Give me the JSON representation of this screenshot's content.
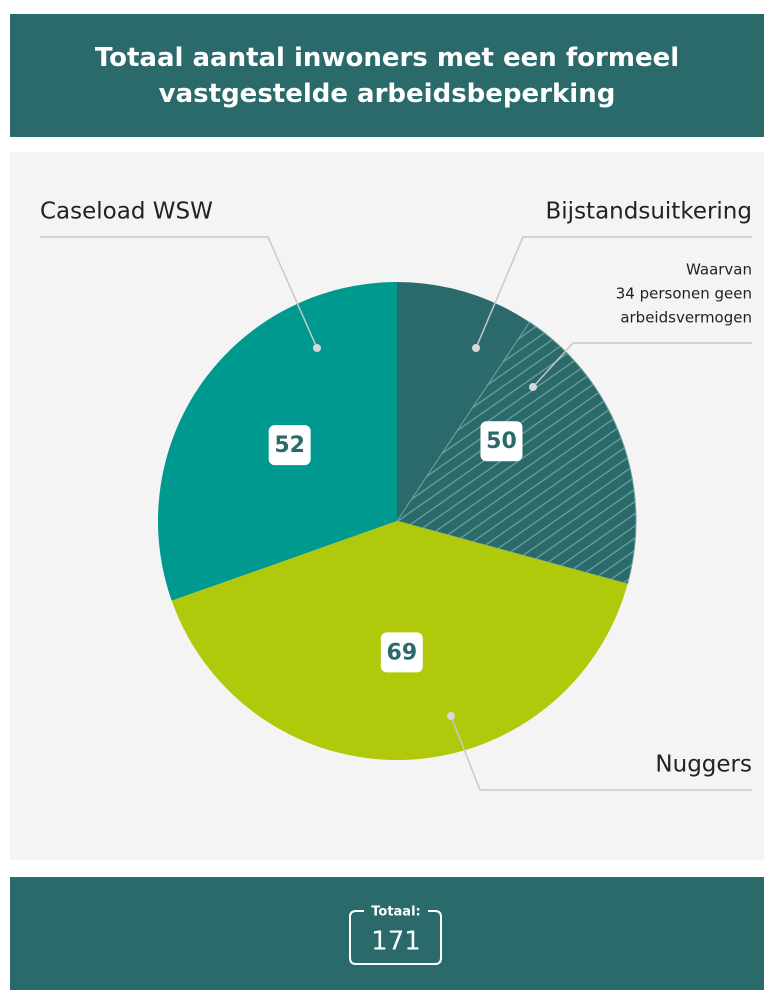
{
  "chart_data": {
    "type": "pie",
    "title": "Totaal aantal inwoners met een formeel vastgestelde arbeidsbeperking",
    "categories": [
      "Bijstandsuitkering",
      "Nuggers",
      "Caseload WSW"
    ],
    "values": [
      50,
      69,
      52
    ],
    "colors": [
      "#2b6a6a",
      "#b0c90b",
      "#009990"
    ],
    "hatched_values": [
      34,
      null,
      null
    ],
    "annotation": [
      "Waarvan",
      "34 personen geen",
      "arbeidsvermogen"
    ],
    "total": {
      "label": "Totaal:",
      "value": 171
    }
  }
}
